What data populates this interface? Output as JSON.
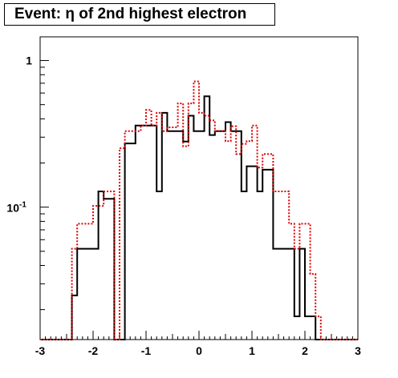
{
  "chart_data": {
    "type": "step",
    "title": "Event: η of 2nd highest electron",
    "xlabel": "",
    "ylabel": "",
    "xlim": [
      -3,
      3
    ],
    "ylim": [
      0.0125,
      1.45
    ],
    "yscale": "log",
    "bin_width": 0.1,
    "grid": false,
    "legend": "none",
    "x_ticks": [
      {
        "value": -3,
        "label": "-3"
      },
      {
        "value": -2,
        "label": "-2"
      },
      {
        "value": -1,
        "label": "-1"
      },
      {
        "value": 0,
        "label": "0"
      },
      {
        "value": 1,
        "label": "1"
      },
      {
        "value": 2,
        "label": "2"
      },
      {
        "value": 3,
        "label": "3"
      }
    ],
    "y_ticks": [
      {
        "value": 1,
        "label": "1",
        "exp": ""
      },
      {
        "value": 0.1,
        "label": "10",
        "exp": "-1"
      }
    ],
    "series": [
      {
        "color": "#000000",
        "dash": "solid",
        "x_start": -3.0,
        "values": [
          0,
          0,
          0,
          0,
          0,
          0,
          0.025,
          0.052,
          0.052,
          0.052,
          0.052,
          0.128,
          0.114,
          0.114,
          0,
          0,
          0.272,
          0.272,
          0.36,
          0.36,
          0.36,
          0.36,
          0.128,
          0.44,
          0.33,
          0.33,
          0.33,
          0.28,
          0.42,
          0.33,
          0.33,
          0.57,
          0.31,
          0.33,
          0.33,
          0.38,
          0.33,
          0.33,
          0.128,
          0.19,
          0.19,
          0.128,
          0.18,
          0.18,
          0.052,
          0.052,
          0.052,
          0.052,
          0.018,
          0.052,
          0.018,
          0.018,
          0,
          0,
          0,
          0,
          0,
          0,
          0,
          0
        ]
      },
      {
        "color": "#e00000",
        "dash": "dotted",
        "x_start": -3.0,
        "values": [
          0,
          0,
          0,
          0,
          0,
          0,
          0.052,
          0.077,
          0.077,
          0.077,
          0.102,
          0.102,
          0.128,
          0.128,
          0,
          0.252,
          0.33,
          0.33,
          0.33,
          0.36,
          0.46,
          0.36,
          0.44,
          0.33,
          0.35,
          0.35,
          0.51,
          0.26,
          0.51,
          0.72,
          0.44,
          0.42,
          0.39,
          0.33,
          0.33,
          0.282,
          0.356,
          0.23,
          0.27,
          0.282,
          0.36,
          0.186,
          0.23,
          0.23,
          0.128,
          0.128,
          0.128,
          0.077,
          0.052,
          0.077,
          0.077,
          0.035,
          0.018,
          0,
          0,
          0,
          0,
          0,
          0,
          0
        ]
      }
    ]
  }
}
